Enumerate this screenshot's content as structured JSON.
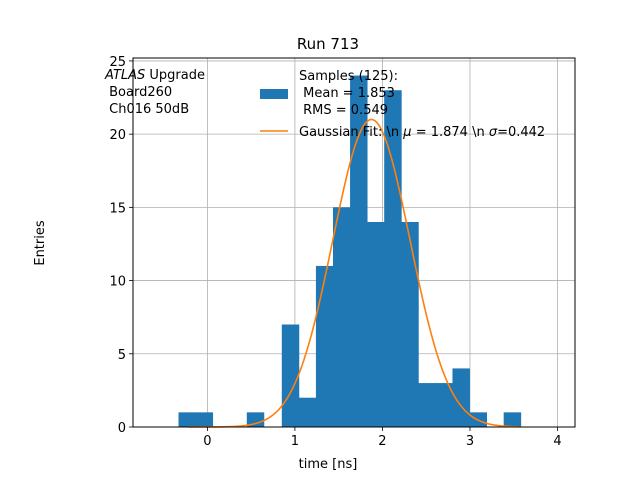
{
  "chart_data": {
    "type": "bar",
    "title": "Run 713",
    "xlabel": "time [ns]",
    "ylabel": "Entries",
    "xlim": [
      -0.85,
      4.2
    ],
    "ylim": [
      0,
      25.2
    ],
    "xticks": [
      0,
      1,
      2,
      3,
      4
    ],
    "yticks": [
      0,
      5,
      10,
      15,
      20,
      25
    ],
    "grid": true,
    "legend_position": "top-right",
    "annotation": {
      "lines": [
        {
          "italic": "ATLAS",
          "text": " Upgrade"
        },
        {
          "italic": "",
          "text": " Board260"
        },
        {
          "italic": "",
          "text": " Ch016 50dB"
        }
      ]
    },
    "histogram": {
      "name": "Samples (125):\n Mean = 1.853\n RMS = 0.549",
      "legend_lines": [
        "Samples (125):",
        " Mean = 1.853",
        " RMS = 0.549"
      ],
      "color": "#1f77b4",
      "bin_width": 0.195,
      "bins": [
        {
          "left": -0.33,
          "count": 1
        },
        {
          "left": -0.135,
          "count": 1
        },
        {
          "left": 0.45,
          "count": 1
        },
        {
          "left": 0.85,
          "count": 7
        },
        {
          "left": 1.045,
          "count": 2
        },
        {
          "left": 1.24,
          "count": 11
        },
        {
          "left": 1.435,
          "count": 15
        },
        {
          "left": 1.63,
          "count": 24
        },
        {
          "left": 1.825,
          "count": 14
        },
        {
          "left": 2.02,
          "count": 23
        },
        {
          "left": 2.215,
          "count": 14
        },
        {
          "left": 2.41,
          "count": 3
        },
        {
          "left": 2.605,
          "count": 3
        },
        {
          "left": 2.8,
          "count": 4
        },
        {
          "left": 2.995,
          "count": 1
        },
        {
          "left": 3.385,
          "count": 1
        }
      ]
    },
    "fit": {
      "name": "Gaussian Fit: \\n $\\mu$ = 1.874 \\n $\\sigma$=0.442",
      "legend_prefix": "Gaussian Fit: \\n ",
      "mu_label": "μ",
      "mu_text": " = 1.874 \\n ",
      "sigma_label": "σ",
      "sigma_text": "=0.442",
      "color": "#ff7f0e",
      "mu": 1.874,
      "sigma": 0.442,
      "amplitude": 21,
      "x_range": [
        -0.23,
        3.58
      ]
    }
  }
}
